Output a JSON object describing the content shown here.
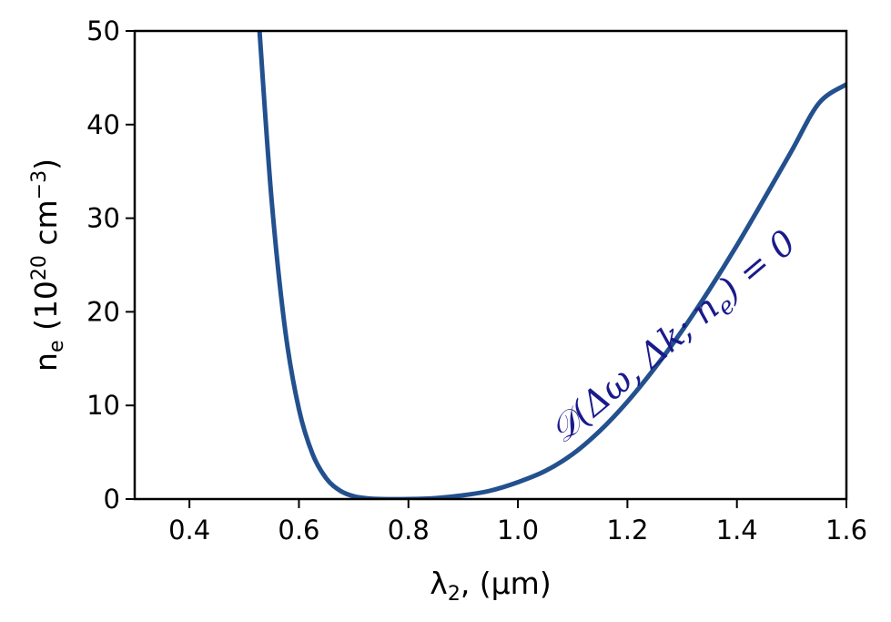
{
  "chart_data": {
    "type": "line",
    "title": "",
    "xlabel": {
      "main": "λ",
      "sub": "2",
      "rest": ", (μm)"
    },
    "ylabel": {
      "main": "n",
      "sub": "e",
      "open": " (10",
      "sup1": "20",
      "unit": " cm",
      "sup2": "−3",
      "close": ")"
    },
    "xlim": [
      0.3,
      1.6
    ],
    "ylim": [
      0,
      50
    ],
    "x_ticks": [
      0.4,
      0.6,
      0.8,
      1.0,
      1.2,
      1.4,
      1.6
    ],
    "x_tick_labels": [
      "0.4",
      "0.6",
      "0.8",
      "1.0",
      "1.2",
      "1.4",
      "1.6"
    ],
    "y_ticks": [
      0,
      10,
      20,
      30,
      40,
      50
    ],
    "y_tick_labels": [
      "0",
      "10",
      "20",
      "30",
      "40",
      "50"
    ],
    "grid": false,
    "series": [
      {
        "color": "#23508e",
        "x": [
          0.528,
          0.55,
          0.575,
          0.6,
          0.625,
          0.65,
          0.675,
          0.7,
          0.725,
          0.75,
          0.8,
          0.85,
          0.9,
          0.95,
          1.0,
          1.05,
          1.1,
          1.15,
          1.2,
          1.25,
          1.3,
          1.35,
          1.4,
          1.45,
          1.5,
          1.55,
          1.6
        ],
        "y": [
          50,
          32,
          18,
          9.6,
          4.8,
          2.2,
          0.9,
          0.3,
          0.07,
          0.0,
          0.0,
          0.1,
          0.4,
          0.9,
          1.8,
          3.0,
          4.8,
          7.3,
          10.4,
          14.0,
          18.0,
          22.4,
          27.1,
          32.1,
          37.2,
          42.3,
          44.3
        ]
      }
    ],
    "annotation": {
      "text": "𝒟(Δω, Δk; n",
      "sub": "e",
      "tail": ") = 0",
      "color": "#1a1a8c",
      "rotation_deg": -40
    }
  }
}
